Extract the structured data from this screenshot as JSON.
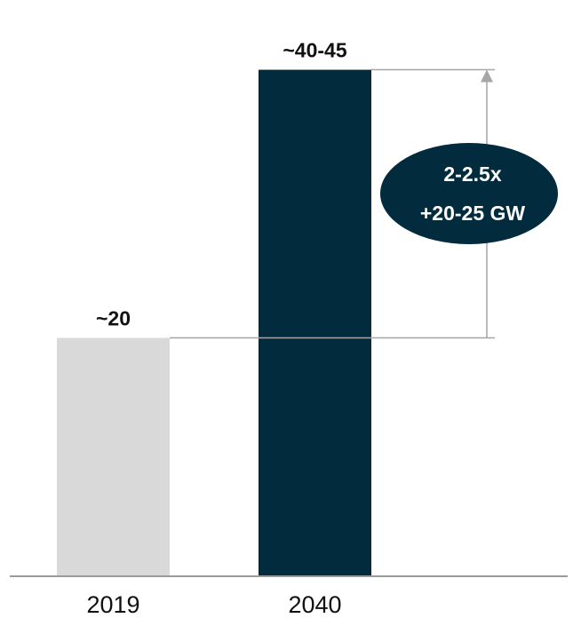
{
  "chart_data": {
    "type": "bar",
    "categories": [
      "2019",
      "2040"
    ],
    "values": [
      20,
      42.5
    ],
    "value_labels": [
      "~20",
      "~40-45"
    ],
    "ylim": [
      0,
      45
    ],
    "grid": false,
    "legend": "none",
    "growth_annotation": {
      "multiplier": "2-2.5x",
      "increase": "+20-25 GW"
    }
  },
  "colors": {
    "bar_2019": "#d9d9d9",
    "bar_2040": "#022b3e",
    "annotation_fill": "#022b3e",
    "guide_lines": "#a6a6a6",
    "axis": "#9a9a9a"
  }
}
